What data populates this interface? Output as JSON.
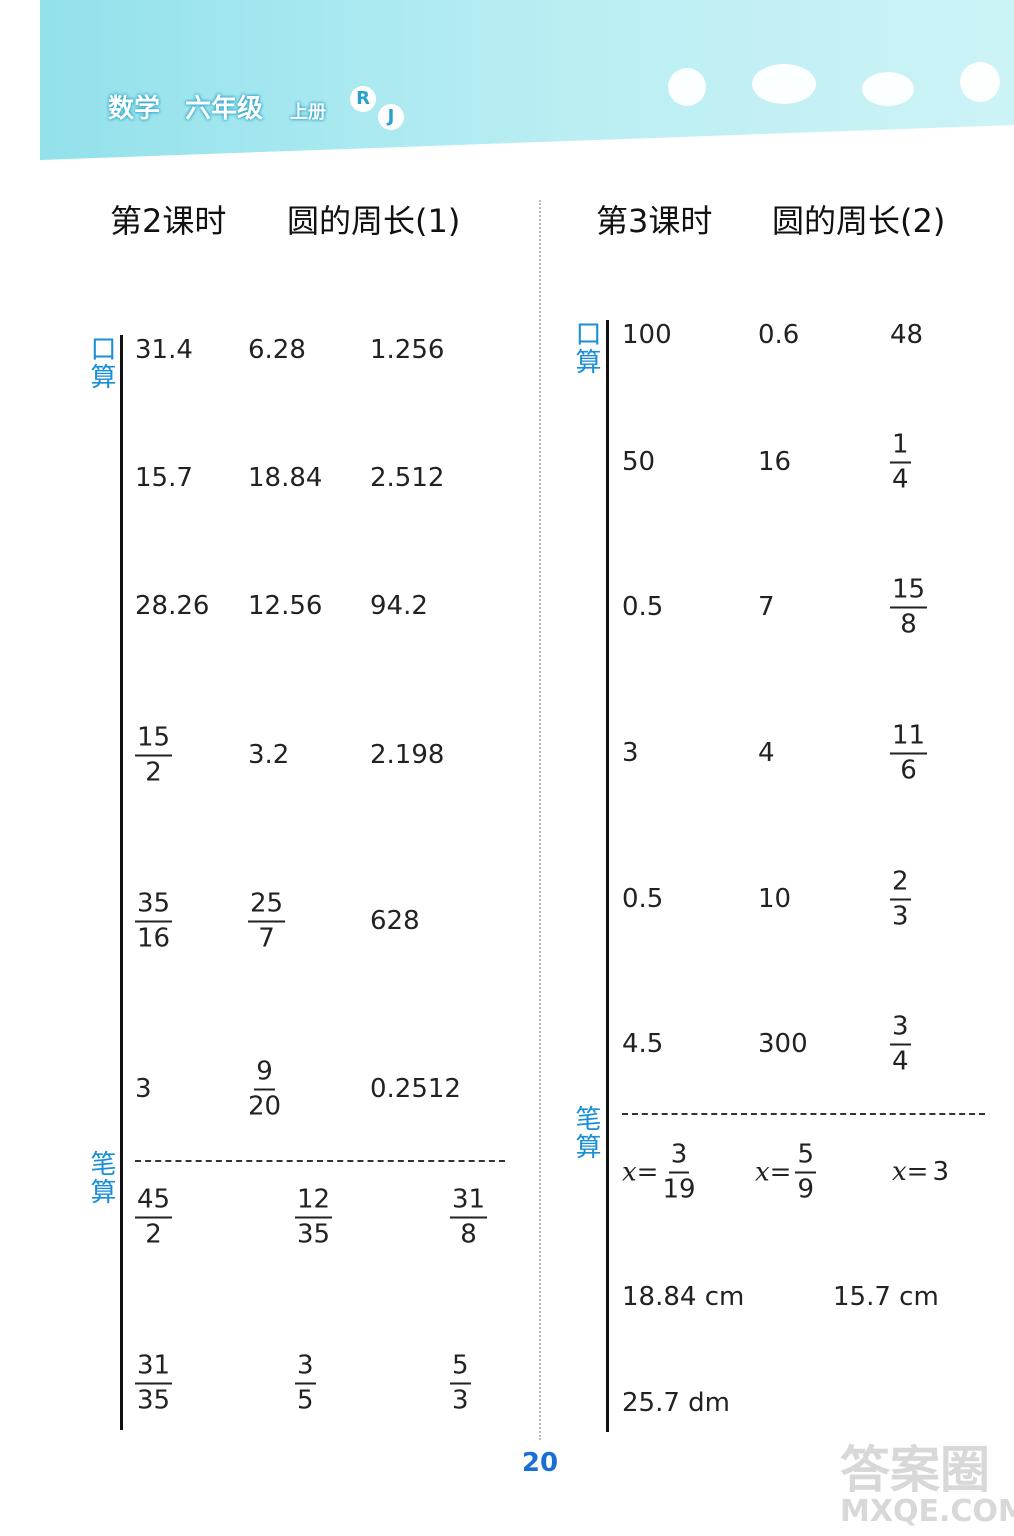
{
  "header": {
    "subject": "数学",
    "grade": "六年级",
    "volume": "上册",
    "logo": [
      "R",
      "J"
    ]
  },
  "sections": [
    {
      "lesson": "第2课时",
      "topic": "圆的周长(1)",
      "mental_label": "口算",
      "written_label": "笔算",
      "mental": [
        [
          "31.4",
          "6.28",
          "1.256"
        ],
        [
          "15.7",
          "18.84",
          "2.512"
        ],
        [
          "28.26",
          "12.56",
          "94.2"
        ],
        [
          {
            "n": "15",
            "d": "2"
          },
          "3.2",
          "2.198"
        ],
        [
          {
            "n": "35",
            "d": "16"
          },
          {
            "n": "25",
            "d": "7"
          },
          "628"
        ],
        [
          "3",
          {
            "n": "9",
            "d": "20"
          },
          "0.2512"
        ]
      ],
      "written": [
        [
          {
            "n": "45",
            "d": "2"
          },
          {
            "n": "12",
            "d": "35"
          },
          {
            "n": "31",
            "d": "8"
          }
        ],
        [
          {
            "n": "31",
            "d": "35"
          },
          {
            "n": "3",
            "d": "5"
          },
          {
            "n": "5",
            "d": "3"
          }
        ]
      ]
    },
    {
      "lesson": "第3课时",
      "topic": "圆的周长(2)",
      "mental_label": "口算",
      "written_label": "笔算",
      "mental": [
        [
          "100",
          "0.6",
          "48"
        ],
        [
          "50",
          "16",
          {
            "n": "1",
            "d": "4"
          }
        ],
        [
          "0.5",
          "7",
          {
            "n": "15",
            "d": "8"
          }
        ],
        [
          "3",
          "4",
          {
            "n": "11",
            "d": "6"
          }
        ],
        [
          "0.5",
          "10",
          {
            "n": "2",
            "d": "3"
          }
        ],
        [
          "4.5",
          "300",
          {
            "n": "3",
            "d": "4"
          }
        ]
      ],
      "written": [
        [
          {
            "prefix": "x=",
            "n": "3",
            "d": "19"
          },
          {
            "prefix": "x=",
            "n": "5",
            "d": "9"
          },
          {
            "prefix": "x=",
            "v": "3"
          }
        ],
        [
          "18.84 cm",
          "15.7 cm"
        ],
        [
          "25.7 dm"
        ]
      ]
    }
  ],
  "page_number": "20",
  "watermark": [
    "答案圈",
    "MXQE.COM"
  ]
}
